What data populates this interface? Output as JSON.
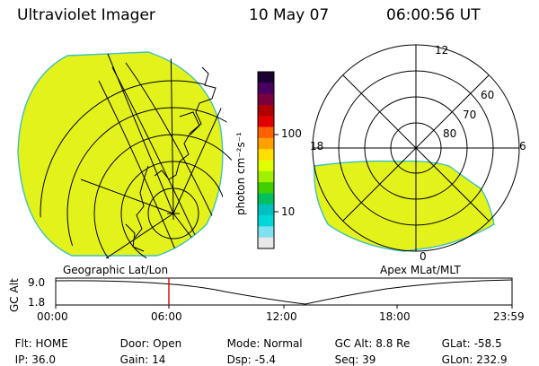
{
  "header": {
    "instrument": "Ultraviolet Imager",
    "date": "10 May 07",
    "time": "06:00:56 UT"
  },
  "geo_panel": {
    "label": "Geographic Lat/Lon"
  },
  "polar_panel": {
    "label": "Apex MLat/MLT",
    "mlt_labels": {
      "top": "12",
      "left": "18",
      "right": "6",
      "bottom": "0"
    },
    "lat_labels": [
      "60",
      "70",
      "80"
    ]
  },
  "colorbar": {
    "unit_label": "photon cm⁻²s⁻¹",
    "ticks": [
      "100",
      "10"
    ],
    "colors": [
      "#1a0033",
      "#4a0060",
      "#7a0040",
      "#b00000",
      "#e00000",
      "#ff6000",
      "#ffa000",
      "#ffe000",
      "#e0ff00",
      "#a0f000",
      "#40d000",
      "#00c060",
      "#00c0c0",
      "#00d8d8",
      "#80e0f0",
      "#e8e8e8"
    ]
  },
  "altitude_plot": {
    "ylabel": "GC Alt",
    "y_ticks": [
      "9.0",
      "1.8"
    ],
    "x_ticks": [
      "00:00",
      "06:00",
      "12:00",
      "18:00",
      "23:59"
    ],
    "current_time_marker": "06:00"
  },
  "status": {
    "row1": [
      {
        "key": "Flt:",
        "value": "HOME"
      },
      {
        "key": "Door:",
        "value": "Open"
      },
      {
        "key": "Mode:",
        "value": "Normal"
      },
      {
        "key": "GC Alt:",
        "value": "8.8 Re"
      },
      {
        "key": "GLat:",
        "value": "-58.5"
      }
    ],
    "row2": [
      {
        "key": "IP:",
        "value": "36.0"
      },
      {
        "key": "Gain:",
        "value": "14"
      },
      {
        "key": "Dsp:",
        "value": "-5.4"
      },
      {
        "key": "Seq:",
        "value": "39"
      },
      {
        "key": "GLon:",
        "value": "232.9"
      }
    ]
  },
  "colors": {
    "aurora_fill": "#e3f21a",
    "aurora_edge": "#3fc0c0",
    "marker": "#e00000"
  }
}
